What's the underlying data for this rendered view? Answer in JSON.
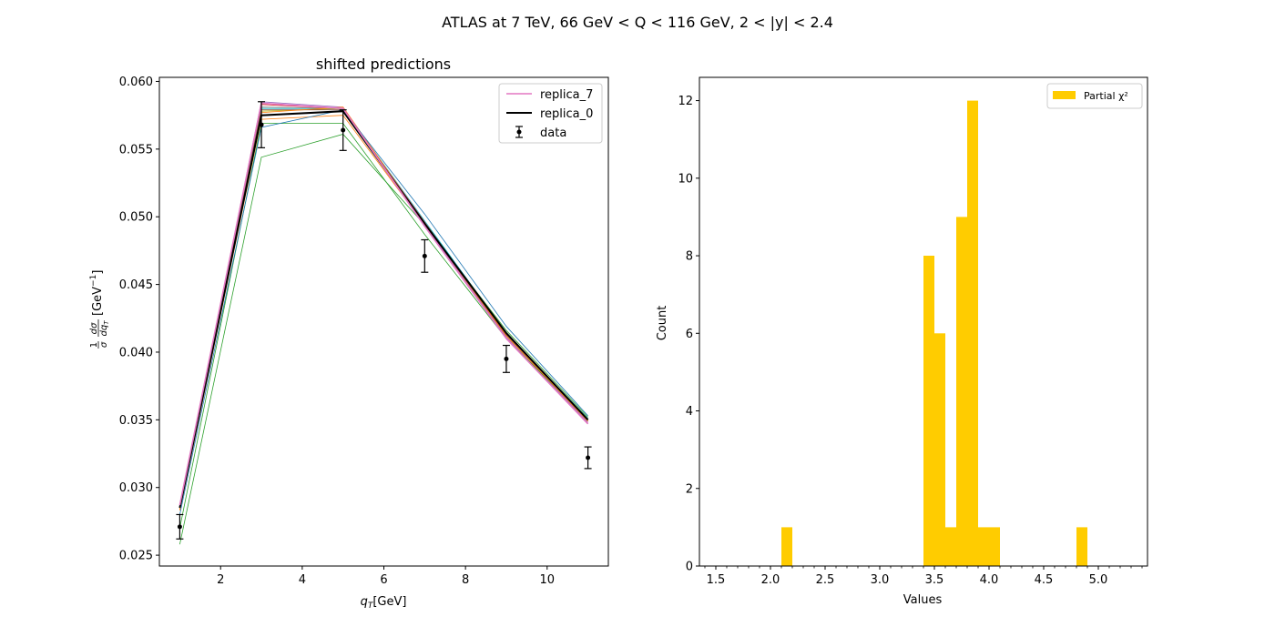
{
  "suptitle": "ATLAS at 7 TeV, 66 GeV < Q < 116 GeV, 2 < |y| < 2.4",
  "chart_data": [
    {
      "type": "line",
      "title": "shifted predictions",
      "xlabel": "qT[GeV]",
      "ylabel": "(1/σ) dσ/dqT [GeV⁻¹]",
      "xlim": [
        0.5,
        11.5
      ],
      "ylim": [
        0.0242,
        0.0603
      ],
      "xticks": [
        2,
        4,
        6,
        8,
        10
      ],
      "yticks": [
        0.025,
        0.03,
        0.035,
        0.04,
        0.045,
        0.05,
        0.055,
        0.06
      ],
      "ytick_labels": [
        "0.025",
        "0.030",
        "0.035",
        "0.040",
        "0.045",
        "0.050",
        "0.055",
        "0.060"
      ],
      "x": [
        1,
        3,
        5,
        7,
        9,
        11
      ],
      "legend_position": "top-right",
      "legend": [
        "replica_7",
        "replica_0",
        "data"
      ],
      "series": [
        {
          "name": "replica_7",
          "color": "#e377c2",
          "values": [
            0.0287,
            0.0584,
            0.058,
            0.0493,
            0.041,
            0.0347
          ]
        },
        {
          "name": "replica_0",
          "color": "#000000",
          "values": [
            0.0285,
            0.0575,
            0.0578,
            0.0495,
            0.0414,
            0.035
          ]
        },
        {
          "color": "#1f77b4",
          "values": [
            0.028,
            0.0566,
            0.0579,
            0.0502,
            0.0419,
            0.0353
          ]
        },
        {
          "color": "#ff7f0e",
          "values": [
            0.0284,
            0.0577,
            0.0581,
            0.0495,
            0.0412,
            0.0349
          ]
        },
        {
          "color": "#2ca02c",
          "values": [
            0.0258,
            0.0544,
            0.0561,
            0.0494,
            0.0416,
            0.0352
          ]
        },
        {
          "color": "#2ca02c",
          "values": [
            0.027,
            0.0569,
            0.0569,
            0.0487,
            0.041,
            0.035
          ]
        },
        {
          "color": "#d62728",
          "values": [
            0.0287,
            0.0583,
            0.058,
            0.0496,
            0.0412,
            0.0349
          ]
        },
        {
          "color": "#9467bd",
          "values": [
            0.0287,
            0.0585,
            0.0581,
            0.0494,
            0.0411,
            0.0348
          ]
        },
        {
          "color": "#8c564b",
          "values": [
            0.0285,
            0.0579,
            0.0579,
            0.0495,
            0.0413,
            0.035
          ]
        },
        {
          "color": "#7f7f7f",
          "values": [
            0.0286,
            0.0581,
            0.058,
            0.0496,
            0.0413,
            0.035
          ]
        },
        {
          "color": "#bcbd22",
          "values": [
            0.0284,
            0.0578,
            0.058,
            0.0496,
            0.0413,
            0.035
          ]
        },
        {
          "color": "#17becf",
          "values": [
            0.0285,
            0.058,
            0.058,
            0.0497,
            0.0414,
            0.0351
          ]
        },
        {
          "color": "#ff7f0e",
          "values": [
            0.0283,
            0.0572,
            0.0575,
            0.0494,
            0.0412,
            0.0349
          ]
        }
      ],
      "data_points": {
        "name": "data",
        "y": [
          0.0271,
          0.0568,
          0.0564,
          0.0471,
          0.0395,
          0.0322
        ],
        "yerr": [
          0.0009,
          0.0017,
          0.0015,
          0.0012,
          0.001,
          0.0008
        ]
      }
    },
    {
      "type": "bar",
      "title": "",
      "xlabel": "Values",
      "ylabel": "Count",
      "xlim": [
        1.35,
        5.45
      ],
      "ylim": [
        0,
        12.6
      ],
      "xticks": [
        1.5,
        2.0,
        2.5,
        3.0,
        3.5,
        4.0,
        4.5,
        5.0
      ],
      "xtick_labels": [
        "1.5",
        "2.0",
        "2.5",
        "3.0",
        "3.5",
        "4.0",
        "4.5",
        "5.0"
      ],
      "yticks": [
        0,
        2,
        4,
        6,
        8,
        10,
        12
      ],
      "minor_xtick_step": 0.1,
      "bin_width": 0.1,
      "bars": [
        {
          "x": 2.1,
          "count": 1
        },
        {
          "x": 3.4,
          "count": 8
        },
        {
          "x": 3.5,
          "count": 6
        },
        {
          "x": 3.6,
          "count": 1
        },
        {
          "x": 3.7,
          "count": 9
        },
        {
          "x": 3.8,
          "count": 12
        },
        {
          "x": 3.9,
          "count": 1
        },
        {
          "x": 4.0,
          "count": 1
        },
        {
          "x": 4.8,
          "count": 1
        }
      ],
      "color": "#ffcc00",
      "legend_position": "top-right",
      "legend": [
        "Partial χ²"
      ]
    }
  ]
}
